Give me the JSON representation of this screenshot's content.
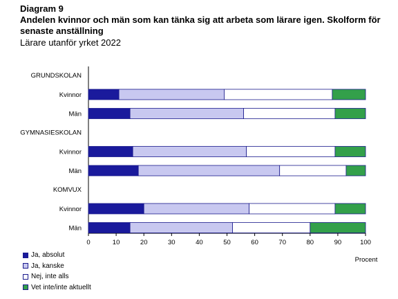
{
  "header": {
    "label": "Diagram 9",
    "title": "Andelen kvinnor och män som kan tänka sig att arbeta som lärare igen. Skolform för senaste anställning",
    "subtitle": "Lärare utanför yrket 2022"
  },
  "chart_data": {
    "type": "bar",
    "orientation": "horizontal",
    "stacked": true,
    "groups": [
      {
        "name": "GRUNDSKOLAN",
        "rows": [
          {
            "label": "Kvinnor",
            "values": [
              11,
              38,
              39,
              12
            ]
          },
          {
            "label": "Män",
            "values": [
              15,
              41,
              33,
              11
            ]
          }
        ]
      },
      {
        "name": "GYMNASIESKOLAN",
        "rows": [
          {
            "label": "Kvinnor",
            "values": [
              16,
              41,
              32,
              11
            ]
          },
          {
            "label": "Män",
            "values": [
              18,
              51,
              24,
              7
            ]
          }
        ]
      },
      {
        "name": "KOMVUX",
        "rows": [
          {
            "label": "Kvinnor",
            "values": [
              20,
              38,
              31,
              11
            ]
          },
          {
            "label": "Män",
            "values": [
              15,
              37,
              28,
              20
            ]
          }
        ]
      }
    ],
    "series": [
      {
        "name": "Ja, absolut",
        "color": "#1a1a9c"
      },
      {
        "name": "Ja, kanske",
        "color": "#c8c8f0"
      },
      {
        "name": "Nej, inte alls",
        "color": "#ffffff"
      },
      {
        "name": "Vet inte/inte aktuellt",
        "color": "#33a04a"
      }
    ],
    "xlim": [
      0,
      100
    ],
    "xticks": [
      0,
      10,
      20,
      30,
      40,
      50,
      60,
      70,
      80,
      90,
      100
    ],
    "xlabel": "Procent",
    "grid": false,
    "legend_position": "bottom-left"
  }
}
